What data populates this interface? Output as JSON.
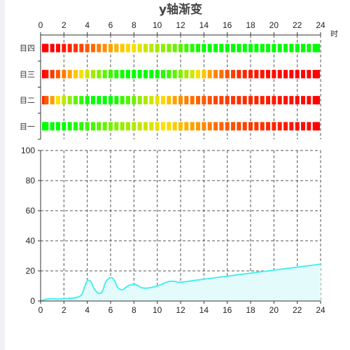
{
  "chart_data": [
    {
      "type": "heatmap",
      "title": "y轴渐变",
      "x_axis": {
        "position": "top",
        "unit_label": "时",
        "range": [
          0,
          24
        ],
        "ticks": [
          "0",
          "2",
          "4",
          "6",
          "8",
          "10",
          "12",
          "14",
          "16",
          "18",
          "20",
          "22",
          "24"
        ]
      },
      "y_categories": [
        "目一",
        "目二",
        "目三",
        "目四"
      ],
      "x": [
        0,
        0.5,
        1,
        1.5,
        2,
        2.5,
        3,
        3.5,
        4,
        4.5,
        5,
        5.5,
        6,
        6.5,
        7,
        7.5,
        8,
        8.5,
        9,
        9.5,
        10,
        10.5,
        11,
        11.5,
        12,
        12.5,
        13,
        13.5,
        14,
        14.5,
        15,
        15.5,
        16,
        16.5,
        17,
        17.5,
        18,
        18.5,
        19,
        19.5,
        20,
        20.5,
        21,
        21.5,
        22,
        22.5,
        23,
        23.5,
        24
      ],
      "color_scale": {
        "min_color": "#ff0000",
        "mid_color": "#ffe000",
        "max_color": "#00ff00"
      },
      "levels": [
        [
          1.0,
          1.0,
          1.0,
          1.0,
          1.0,
          0.97,
          0.94,
          0.91,
          0.88,
          0.86,
          0.83,
          0.8,
          0.77,
          0.74,
          0.71,
          0.68,
          0.65,
          0.62,
          0.6,
          0.57,
          0.54,
          0.51,
          0.48,
          0.45,
          0.42,
          0.39,
          0.36,
          0.34,
          0.31,
          0.28,
          0.25,
          0.22,
          0.2,
          0.18,
          0.16,
          0.14,
          0.13,
          0.12,
          0.11,
          0.1,
          0.08,
          0.07,
          0.06,
          0.05,
          0.04,
          0.03,
          0.02,
          0.01,
          0.0
        ],
        [
          0.1,
          0.2,
          0.35,
          0.5,
          0.62,
          0.72,
          0.82,
          0.9,
          0.96,
          1.0,
          1.0,
          1.0,
          1.0,
          0.96,
          0.9,
          0.84,
          0.78,
          0.72,
          0.66,
          0.6,
          0.54,
          0.48,
          0.42,
          0.36,
          0.32,
          0.28,
          0.25,
          0.22,
          0.2,
          0.18,
          0.16,
          0.14,
          0.13,
          0.12,
          0.11,
          0.1,
          0.09,
          0.08,
          0.07,
          0.06,
          0.06,
          0.05,
          0.04,
          0.04,
          0.03,
          0.03,
          0.02,
          0.01,
          0.0
        ],
        [
          0.0,
          0.05,
          0.12,
          0.2,
          0.28,
          0.36,
          0.44,
          0.52,
          0.6,
          0.68,
          0.75,
          0.82,
          0.88,
          0.93,
          0.97,
          1.0,
          1.0,
          1.0,
          1.0,
          1.0,
          0.97,
          0.93,
          0.88,
          0.82,
          0.75,
          0.68,
          0.6,
          0.52,
          0.44,
          0.36,
          0.3,
          0.24,
          0.18,
          0.14,
          0.1,
          0.08,
          0.06,
          0.05,
          0.04,
          0.03,
          0.03,
          0.02,
          0.02,
          0.01,
          0.01,
          0.01,
          0.0,
          0.0,
          0.0
        ],
        [
          0.0,
          0.0,
          0.0,
          0.02,
          0.05,
          0.08,
          0.12,
          0.16,
          0.2,
          0.24,
          0.28,
          0.32,
          0.36,
          0.4,
          0.44,
          0.48,
          0.52,
          0.56,
          0.6,
          0.64,
          0.68,
          0.72,
          0.76,
          0.8,
          0.84,
          0.88,
          0.92,
          0.96,
          1.0,
          1.0,
          1.0,
          1.0,
          1.0,
          1.0,
          1.0,
          1.0,
          1.0,
          1.0,
          1.0,
          1.0,
          1.0,
          1.0,
          1.0,
          1.0,
          1.0,
          1.0,
          1.0,
          1.0,
          1.0
        ]
      ]
    },
    {
      "type": "area",
      "x_axis": {
        "range": [
          0,
          24
        ],
        "ticks": [
          "0",
          "2",
          "4",
          "6",
          "8",
          "10",
          "12",
          "14",
          "16",
          "18",
          "20",
          "22",
          "24"
        ]
      },
      "y_axis": {
        "range": [
          0,
          100
        ],
        "ticks": [
          "0",
          "20",
          "40",
          "60",
          "80",
          "100"
        ]
      },
      "grid": true,
      "line_color": "#46f0f0",
      "fill_color": "#e4fbfb",
      "x": [
        0,
        0.5,
        1,
        1.5,
        2,
        2.5,
        3,
        3.5,
        3.8,
        4,
        4.3,
        4.6,
        5,
        5.3,
        5.6,
        6,
        6.3,
        6.6,
        7,
        7.3,
        7.6,
        8,
        8.3,
        8.6,
        9,
        9.5,
        10,
        10.5,
        11,
        11.5,
        12,
        13,
        14,
        15,
        16,
        17,
        18,
        19,
        20,
        21,
        22,
        23,
        24
      ],
      "y": [
        0,
        1.2,
        1.5,
        1.3,
        1.5,
        1.8,
        2.2,
        4,
        10,
        13.5,
        13,
        8,
        5,
        6.5,
        13,
        15.5,
        14,
        9,
        7.5,
        9,
        10.5,
        11,
        10.5,
        9,
        8.5,
        9,
        10,
        11.5,
        13,
        13,
        12.5,
        13.5,
        14.5,
        15.5,
        16.5,
        17.5,
        18.5,
        19.5,
        20.5,
        21.5,
        22.5,
        23.5,
        24.5
      ]
    }
  ]
}
